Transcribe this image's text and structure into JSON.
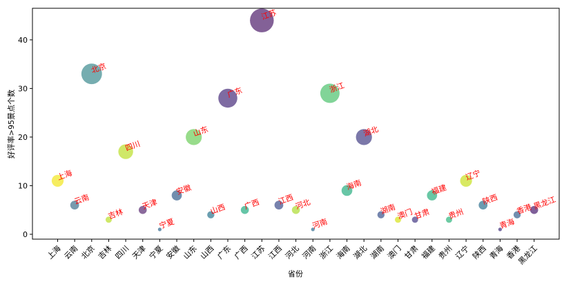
{
  "chart_data": {
    "type": "scatter",
    "xlabel": "省份",
    "ylabel": "好评率>95景点个数",
    "ylim": [
      -1,
      46.5
    ],
    "yticks": [
      0,
      10,
      20,
      30,
      40
    ],
    "grid": false,
    "legend": "none",
    "categories": [
      "上海",
      "云南",
      "北京",
      "吉林",
      "四川",
      "天津",
      "宁夏",
      "安徽",
      "山东",
      "山西",
      "广东",
      "广西",
      "江苏",
      "江西",
      "河北",
      "河南",
      "浙江",
      "海南",
      "湖北",
      "湖南",
      "澳门",
      "甘肃",
      "福建",
      "贵州",
      "辽宁",
      "陕西",
      "青海",
      "香港",
      "黑龙江"
    ],
    "values": [
      11,
      6,
      33,
      3,
      17,
      5,
      1,
      8,
      20,
      4,
      28,
      5,
      44,
      6,
      5,
      1,
      29,
      9,
      20,
      4,
      3,
      3,
      8,
      3,
      11,
      6,
      1,
      4,
      5
    ],
    "colors": [
      "#f2e51d",
      "#3e6f8b",
      "#3c8a8e",
      "#bade28",
      "#bade28",
      "#5a2b72",
      "#31678e",
      "#345e8c",
      "#6ccd5a",
      "#2b758e",
      "#472c7a",
      "#25ac82",
      "#4f1e6b",
      "#3d4d8a",
      "#addc30",
      "#2f6b8e",
      "#4cc26c",
      "#28ae80",
      "#433f84",
      "#3b538b",
      "#d7e219",
      "#443984",
      "#29af7f",
      "#2fb47c",
      "#c8e020",
      "#2d708e",
      "#3f2d7a",
      "#33608d",
      "#481b6d"
    ]
  }
}
